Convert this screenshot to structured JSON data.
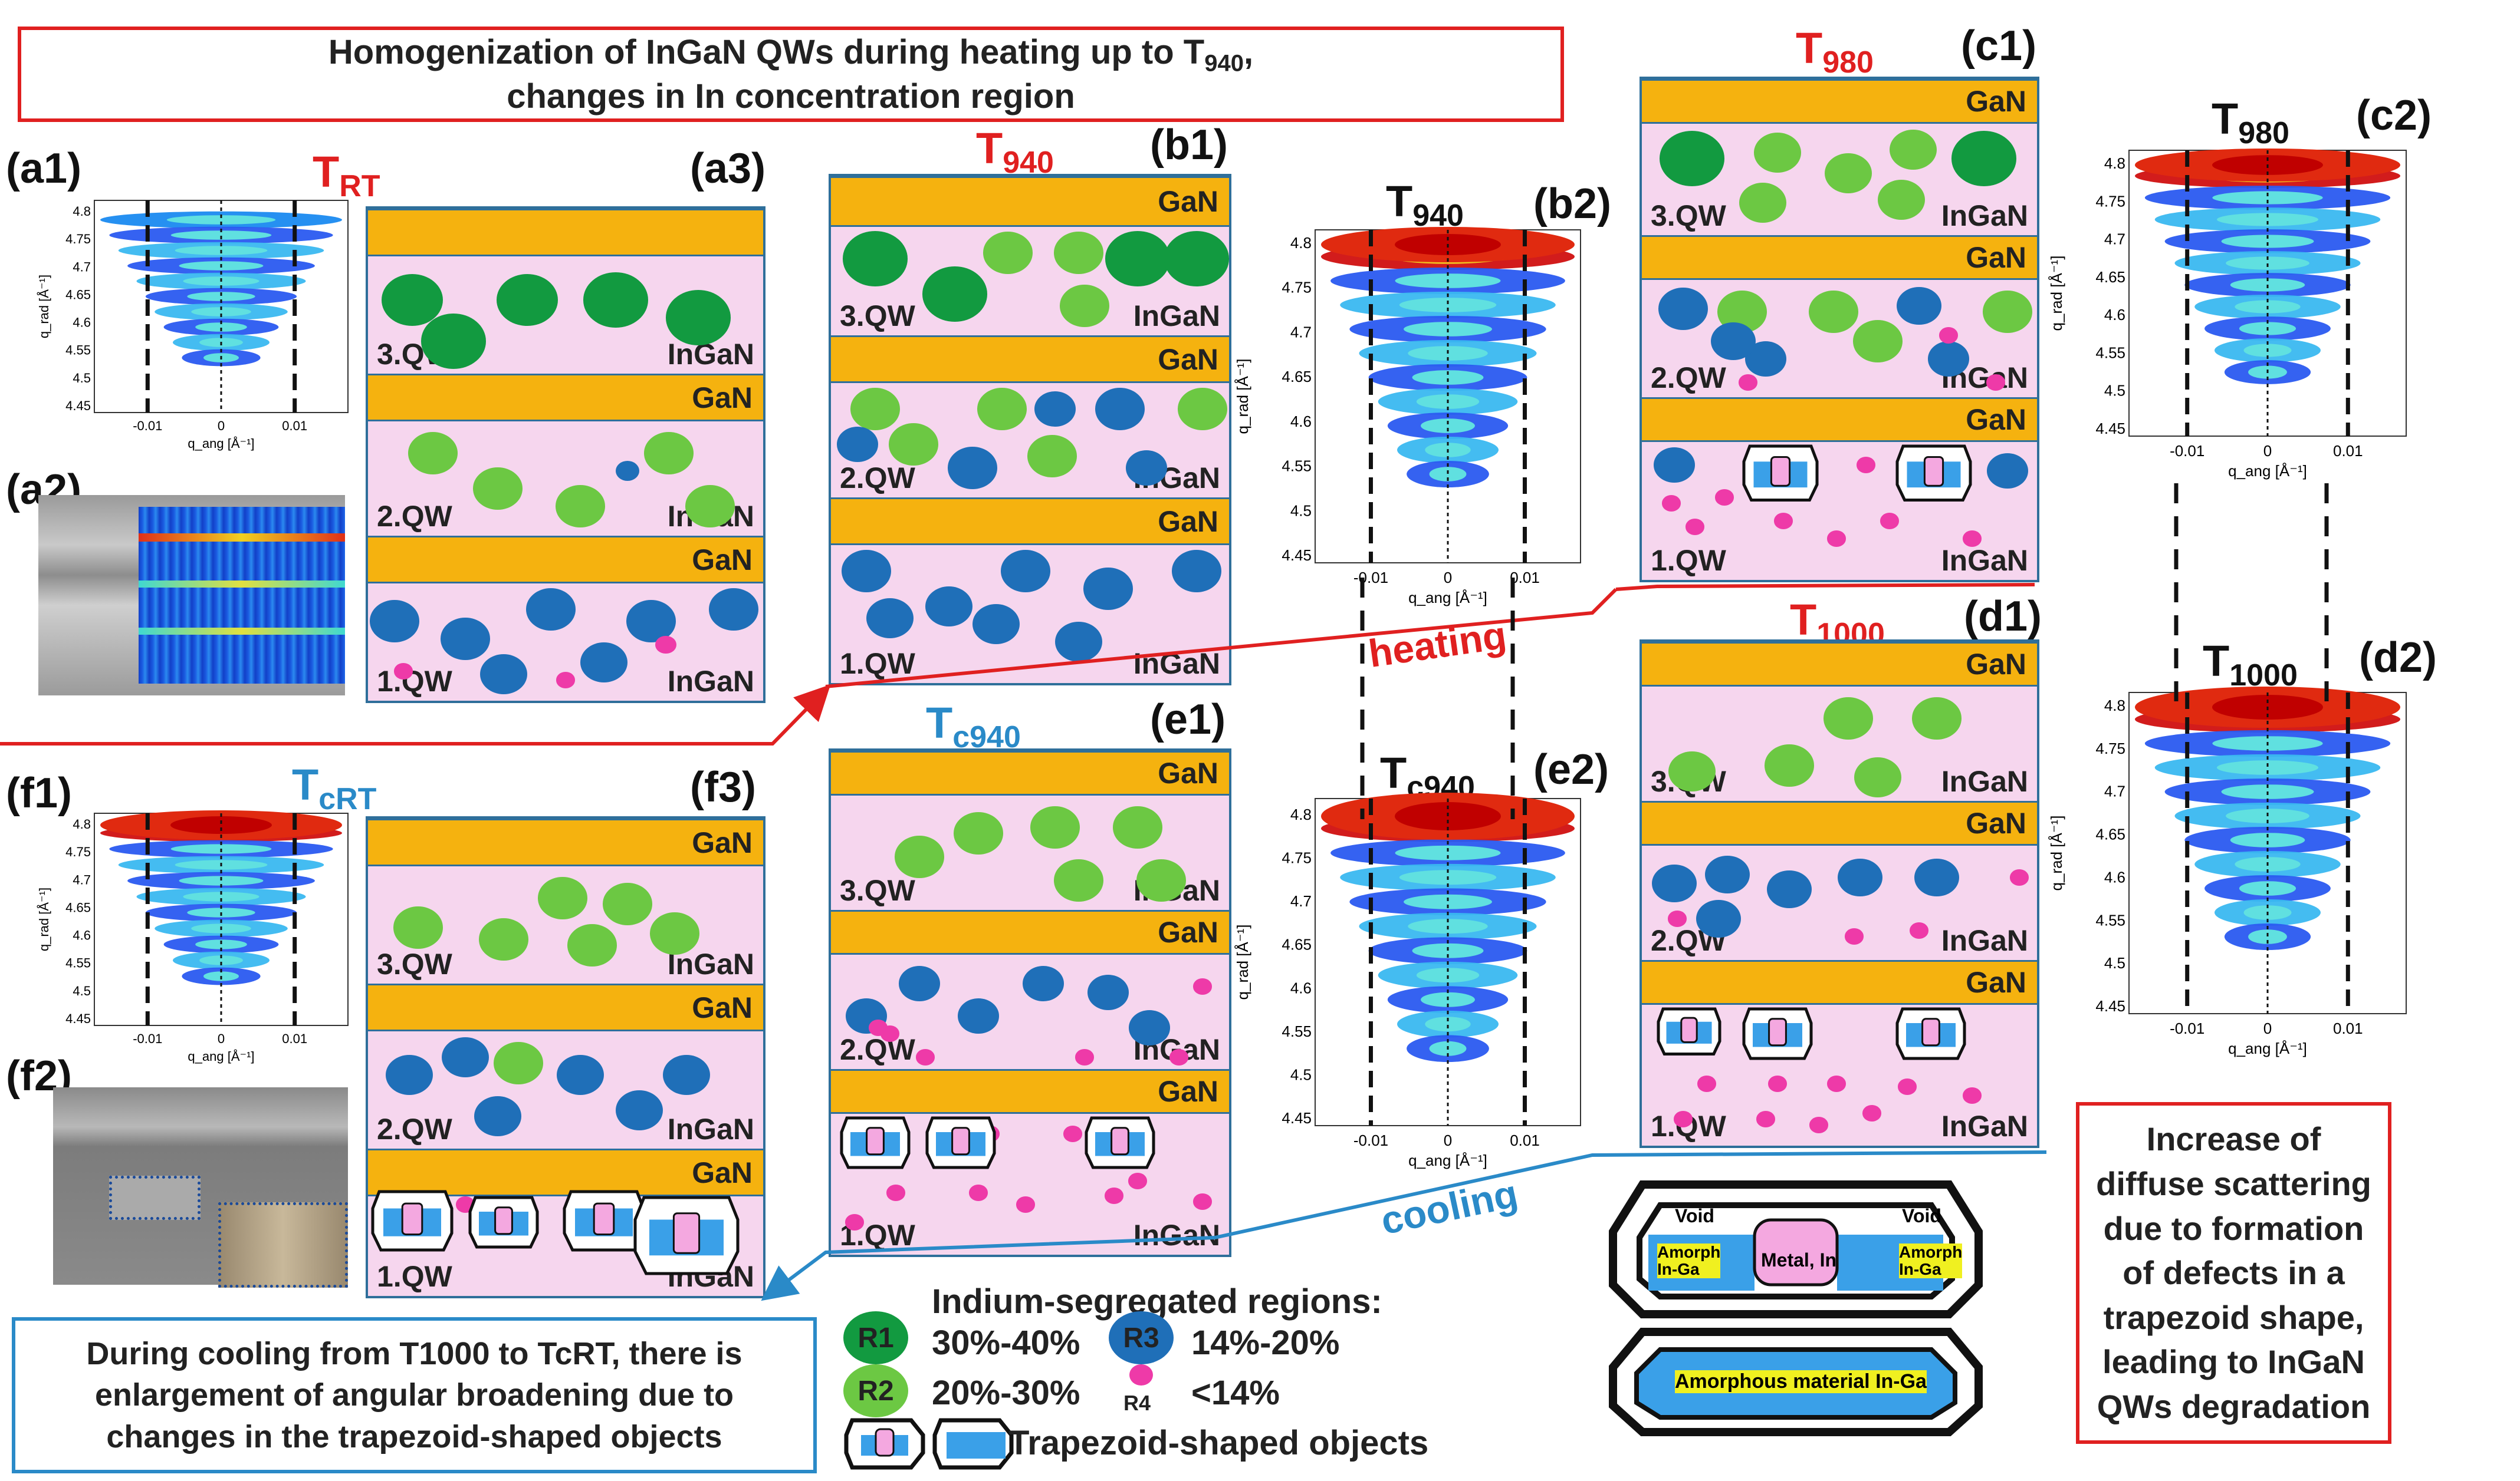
{
  "header": {
    "line1": "Homogenization of InGaN QWs during heating up to T",
    "sub": "940",
    "line2": "changes in In concentration region"
  },
  "panels": {
    "a1": "(a1)",
    "a2": "(a2)",
    "a3": "(a3)",
    "b1": "(b1)",
    "b2": "(b2)",
    "c1": "(c1)",
    "c2": "(c2)",
    "d1": "(d1)",
    "d2": "(d2)",
    "e1": "(e1)",
    "e2": "(e2)",
    "f1": "(f1)",
    "f2": "(f2)",
    "f3": "(f3)"
  },
  "temps": {
    "T": "T",
    "RT": "RT",
    "t940": "940",
    "t980": "980",
    "t1000": "1000",
    "c940": "c940",
    "cRT": "cRT"
  },
  "layers": {
    "gan": "GaN",
    "ingan": "InGaN",
    "qw1": "1.QW",
    "qw2": "2.QW",
    "qw3": "3.QW"
  },
  "axes": {
    "ylabel": "q_rad [Å⁻¹]",
    "xlabel": "q_ang [Å⁻¹]",
    "xticks": [
      "-0.01",
      "0",
      "0.01"
    ],
    "yticks": [
      "4.8",
      "4.75",
      "4.7",
      "4.65",
      "4.6",
      "4.55",
      "4.5",
      "4.45"
    ]
  },
  "arrows": {
    "heating": "heating",
    "cooling": "cooling"
  },
  "trapezoid_detail": {
    "void": "Void",
    "metal": "Metal, In",
    "amorph1": "Amorph",
    "amorph2": "In-Ga",
    "amorphous_material": "Amorphous material In-Ga"
  },
  "legend": {
    "title": "Indium-segregated regions:",
    "r1": "R1",
    "r1_range": "30%-40%",
    "r2": "R2",
    "r2_range": "20%-30%",
    "r3": "R3",
    "r3_range": "14%-20%",
    "r4": "R4",
    "r4_range": "<14%",
    "trap": "Trapezoid-shaped objects"
  },
  "note_cooling": "During cooling from T1000 to TcRT, there is enlargement of angular broadening due to changes in the trapezoid-shaped objects",
  "note_diffuse": "Increase of diffuse scattering due to formation of defects in a trapezoid shape, leading to InGaN QWs degradation",
  "colors": {
    "red": "#e02020",
    "blue": "#2a8ac8",
    "gan": "#f5b20f",
    "qw": "#f6d6ee",
    "r1": "#129a40",
    "r2": "#6cc843",
    "r3": "#1f6fb8",
    "r4": "#ee3aa8"
  }
}
